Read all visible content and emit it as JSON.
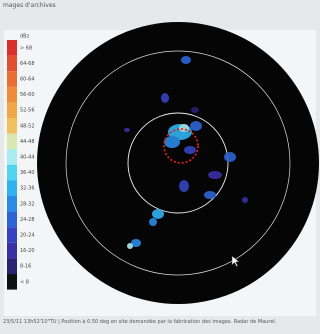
{
  "header": {
    "title": "mages d'archives"
  },
  "legend": {
    "unit": "dBz",
    "items": [
      {
        "label": "> 68",
        "color": "#d8302a"
      },
      {
        "label": "64-68",
        "color": "#e0502e"
      },
      {
        "label": "60-64",
        "color": "#e86e34"
      },
      {
        "label": "56-60",
        "color": "#ee8c3c"
      },
      {
        "label": "52-56",
        "color": "#f0a846"
      },
      {
        "label": "48-52",
        "color": "#f0c060"
      },
      {
        "label": "44-48",
        "color": "#d8e8b0"
      },
      {
        "label": "40-44",
        "color": "#a8ecee"
      },
      {
        "label": "36-40",
        "color": "#50d4f2"
      },
      {
        "label": "32-36",
        "color": "#30b2f0"
      },
      {
        "label": "28-32",
        "color": "#2a8ae6"
      },
      {
        "label": "24-28",
        "color": "#2c64d4"
      },
      {
        "label": "20-24",
        "color": "#3444c0"
      },
      {
        "label": "16-20",
        "color": "#3a30a4"
      },
      {
        "label": "8-16",
        "color": "#2c2070"
      },
      {
        "label": "< 8",
        "color": "#101010"
      }
    ]
  },
  "caption": "23/5/11 13h52'10\"TU | Position à 0.50 deg en site demandée par la fabrication des images. Radar de Maurel."
}
